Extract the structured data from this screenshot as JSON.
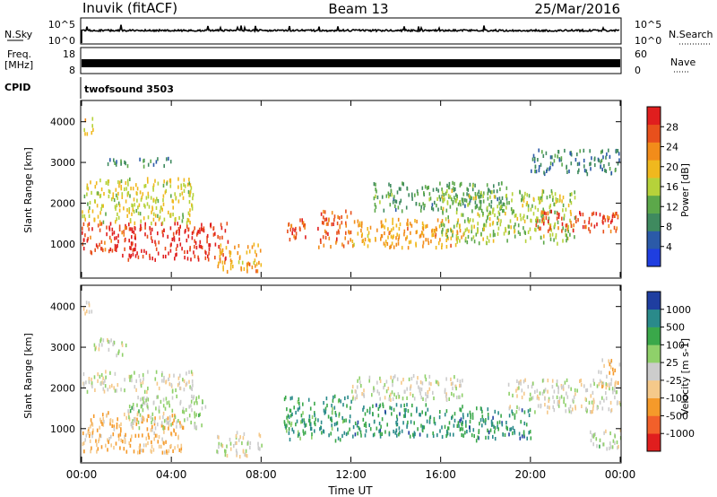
{
  "header": {
    "station": "Inuvik (fitACF)",
    "beam": "Beam 13",
    "date": "25/Mar/2016"
  },
  "panels": {
    "nsky": {
      "label": "N.Sky",
      "ticks": [
        "10^5",
        "10^0"
      ],
      "right_label": "N.Search",
      "right_ticks": [
        "10^5",
        "10^0"
      ]
    },
    "freq": {
      "label": "Freq.",
      "unit": "[MHz]",
      "ticks": [
        "18",
        "8"
      ],
      "right_label": "Nave",
      "right_ticks": [
        "60",
        "0"
      ]
    },
    "cpid": {
      "label": "CPID",
      "value": "twofsound 3503"
    }
  },
  "colors": {
    "power": [
      "#1f3ee0",
      "#2b5aa8",
      "#3f8a5f",
      "#5ca84a",
      "#b6d23a",
      "#f0b81e",
      "#f28c1a",
      "#e8501c",
      "#e01e1e"
    ],
    "velocity": [
      "#e01e1e",
      "#f2602a",
      "#f59a2a",
      "#f5c98a",
      "#cccccc",
      "#8fd06a",
      "#3aa84a",
      "#2a8a8a",
      "#1f3ea0"
    ]
  },
  "chart_data": [
    {
      "type": "heatmap",
      "title": "",
      "xlabel": "Time UT",
      "ylabel": "Slant Range [km]",
      "x_ticks": [
        "00:00",
        "04:00",
        "08:00",
        "12:00",
        "16:00",
        "20:00",
        "00:00"
      ],
      "y_ticks": [
        "1000",
        "2000",
        "3000",
        "4000"
      ],
      "ylim": [
        180,
        4500
      ],
      "colorbar": {
        "label": "Power [dB]",
        "ticks": [
          "28",
          "24",
          "20",
          "16",
          "12",
          "8",
          "4"
        ],
        "range": [
          0,
          30
        ]
      },
      "regions": [
        {
          "x": [
            0.0,
            2.0
          ],
          "y": [
            700,
            1500
          ],
          "value": 26
        },
        {
          "x": [
            2.0,
            6.5
          ],
          "y": [
            600,
            1500
          ],
          "value": 28
        },
        {
          "x": [
            0.0,
            5.0
          ],
          "y": [
            1500,
            2600
          ],
          "value": 16
        },
        {
          "x": [
            1.0,
            4.0
          ],
          "y": [
            2900,
            3100
          ],
          "value": 9
        },
        {
          "x": [
            0.0,
            0.5
          ],
          "y": [
            3700,
            4100
          ],
          "value": 18
        },
        {
          "x": [
            6.0,
            8.0
          ],
          "y": [
            300,
            1000
          ],
          "value": 20
        },
        {
          "x": [
            9.0,
            10.0
          ],
          "y": [
            1100,
            1700
          ],
          "value": 24
        },
        {
          "x": [
            10.5,
            12.0
          ],
          "y": [
            900,
            1800
          ],
          "value": 24
        },
        {
          "x": [
            12.0,
            17.0
          ],
          "y": [
            900,
            1600
          ],
          "value": 20
        },
        {
          "x": [
            13.0,
            19.0
          ],
          "y": [
            1800,
            2500
          ],
          "value": 10
        },
        {
          "x": [
            16.0,
            22.0
          ],
          "y": [
            1000,
            2300
          ],
          "value": 14
        },
        {
          "x": [
            20.0,
            24.0
          ],
          "y": [
            1300,
            1800
          ],
          "value": 25
        },
        {
          "x": [
            20.0,
            24.0
          ],
          "y": [
            2700,
            3300
          ],
          "value": 8
        }
      ]
    },
    {
      "type": "heatmap",
      "title": "",
      "xlabel": "Time UT",
      "ylabel": "Slant Range [km]",
      "x_ticks": [
        "00:00",
        "04:00",
        "08:00",
        "12:00",
        "16:00",
        "20:00",
        "00:00"
      ],
      "y_ticks": [
        "1000",
        "2000",
        "3000",
        "4000"
      ],
      "ylim": [
        180,
        4500
      ],
      "colorbar": {
        "label": "Velocity [m s-1]",
        "ticks": [
          "1000",
          "500",
          "100",
          "25",
          "-25",
          "-100",
          "-500",
          "-1000"
        ],
        "range": [
          -1200,
          1200
        ]
      },
      "regions": [
        {
          "x": [
            0.0,
            4.5
          ],
          "y": [
            400,
            1400
          ],
          "value": -350
        },
        {
          "x": [
            0.0,
            5.0
          ],
          "y": [
            1900,
            2400
          ],
          "value": 0
        },
        {
          "x": [
            0.5,
            2.0
          ],
          "y": [
            2800,
            3200
          ],
          "value": 0
        },
        {
          "x": [
            2.0,
            5.5
          ],
          "y": [
            1000,
            1800
          ],
          "value": 150
        },
        {
          "x": [
            0.0,
            0.5
          ],
          "y": [
            3700,
            4100
          ],
          "value": -200
        },
        {
          "x": [
            6.0,
            8.0
          ],
          "y": [
            300,
            900
          ],
          "value": 0
        },
        {
          "x": [
            9.0,
            12.0
          ],
          "y": [
            700,
            1800
          ],
          "value": 600
        },
        {
          "x": [
            12.0,
            17.0
          ],
          "y": [
            800,
            1600
          ],
          "value": 700
        },
        {
          "x": [
            12.0,
            17.0
          ],
          "y": [
            1700,
            2300
          ],
          "value": 0
        },
        {
          "x": [
            17.0,
            20.0
          ],
          "y": [
            700,
            1500
          ],
          "value": 700
        },
        {
          "x": [
            19.0,
            24.0
          ],
          "y": [
            1400,
            2200
          ],
          "value": 0
        },
        {
          "x": [
            22.5,
            24.0
          ],
          "y": [
            500,
            1000
          ],
          "value": 150
        },
        {
          "x": [
            23.0,
            24.0
          ],
          "y": [
            2000,
            2700
          ],
          "value": -300
        }
      ]
    }
  ]
}
